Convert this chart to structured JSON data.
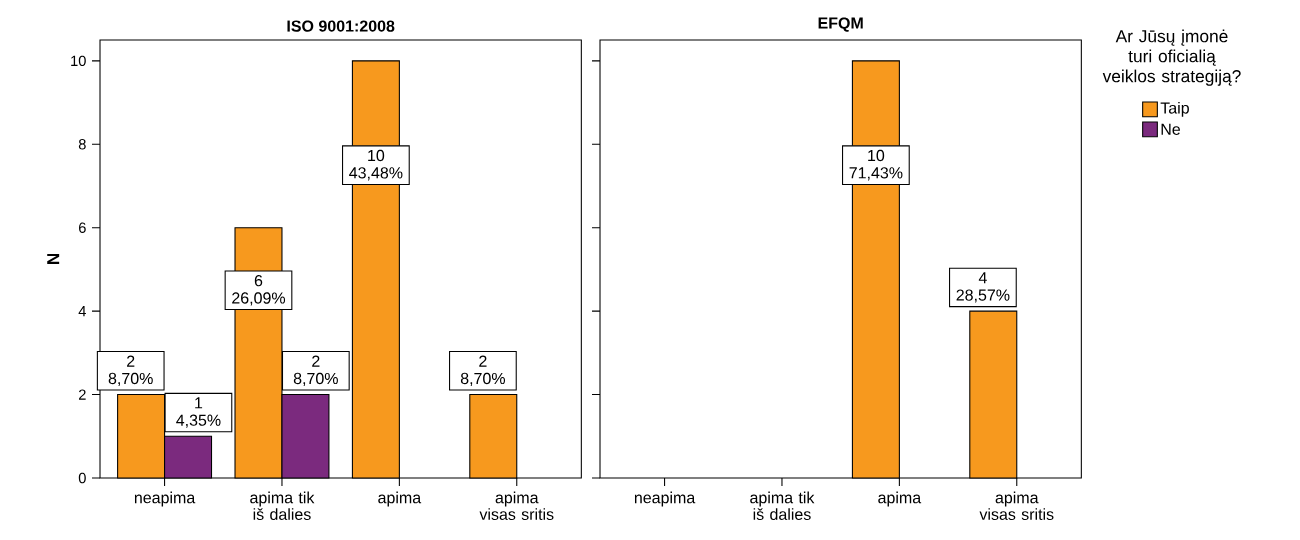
{
  "chart_data": [
    {
      "type": "bar",
      "title": "ISO 9001:2008",
      "ylabel": "N",
      "categories": [
        "neapima",
        "apima tik iš dalies",
        "apima",
        "apima visas sritis"
      ],
      "ylim": [
        0,
        10.5
      ],
      "yticks": [
        0,
        2,
        4,
        6,
        8,
        10
      ],
      "series": [
        {
          "color": "#f7991e",
          "values": [
            2,
            6,
            10,
            2
          ],
          "value_labels": [
            "2 8,70%",
            "6 26,09%",
            "10 43,48%",
            "2 8,70%"
          ]
        },
        {
          "color": "#7b2a7e",
          "values": [
            1,
            2,
            null,
            null
          ],
          "value_labels": [
            "1 4,35%",
            "2 8,70%",
            null,
            null
          ]
        }
      ]
    },
    {
      "type": "bar",
      "title": "EFQM",
      "categories": [
        "neapima",
        "apima tik iš dalies",
        "apima",
        "apima visas sritis"
      ],
      "ylim": [
        0,
        10.5
      ],
      "yticks": [
        0,
        2,
        4,
        6,
        8,
        10
      ],
      "tick_labels": "x",
      "legend": "right",
      "legend_title": "Ar Jūsų įmonė turi oficialią veiklos strategiją?",
      "series": [
        {
          "name": "Taip",
          "color": "#f7991e",
          "values": [
            null,
            null,
            10,
            4
          ],
          "value_labels": [
            null,
            null,
            "10 71,43%",
            "4 28,57%"
          ]
        },
        {
          "name": "Ne",
          "color": "#7b2a7e",
          "values": [
            null,
            null,
            null,
            null
          ]
        }
      ]
    }
  ]
}
